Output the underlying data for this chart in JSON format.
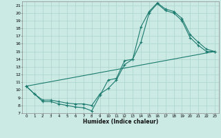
{
  "xlabel": "Humidex (Indice chaleur)",
  "background_color": "#cceae4",
  "grid_color": "#aad4cc",
  "line_color": "#1a7a6e",
  "xlim": [
    -0.5,
    23.5
  ],
  "ylim": [
    7,
    21.5
  ],
  "xticks": [
    0,
    1,
    2,
    3,
    4,
    5,
    6,
    7,
    8,
    9,
    10,
    11,
    12,
    13,
    14,
    15,
    16,
    17,
    18,
    19,
    20,
    21,
    22,
    23
  ],
  "yticks": [
    7,
    8,
    9,
    10,
    11,
    12,
    13,
    14,
    15,
    16,
    17,
    18,
    19,
    20,
    21
  ],
  "curves": [
    {
      "x": [
        0,
        1,
        2,
        3,
        4,
        5,
        6,
        7,
        8,
        9,
        10,
        11,
        12,
        13,
        14,
        15,
        16,
        17,
        18,
        19,
        20,
        21,
        22,
        23
      ],
      "y": [
        10.5,
        9.5,
        8.5,
        8.5,
        8.2,
        8.0,
        7.8,
        7.7,
        7.3,
        9.3,
        11.3,
        11.5,
        13.8,
        14.0,
        18.2,
        20.2,
        21.3,
        20.5,
        20.2,
        19.3,
        17.2,
        16.2,
        15.3,
        15.0
      ],
      "marker": true
    },
    {
      "x": [
        0,
        1,
        2,
        3,
        4,
        5,
        6,
        7,
        8,
        9,
        10,
        11,
        12,
        13,
        14,
        15,
        16,
        17,
        18,
        19,
        20,
        21,
        22,
        23
      ],
      "y": [
        10.5,
        9.5,
        8.7,
        8.7,
        8.5,
        8.3,
        8.2,
        8.2,
        8.0,
        9.5,
        10.2,
        11.3,
        13.3,
        14.0,
        16.2,
        20.0,
        21.2,
        20.3,
        20.0,
        19.0,
        16.8,
        15.8,
        15.0,
        15.0
      ],
      "marker": true
    },
    {
      "x": [
        0,
        23
      ],
      "y": [
        10.5,
        15.0
      ],
      "marker": false
    }
  ]
}
